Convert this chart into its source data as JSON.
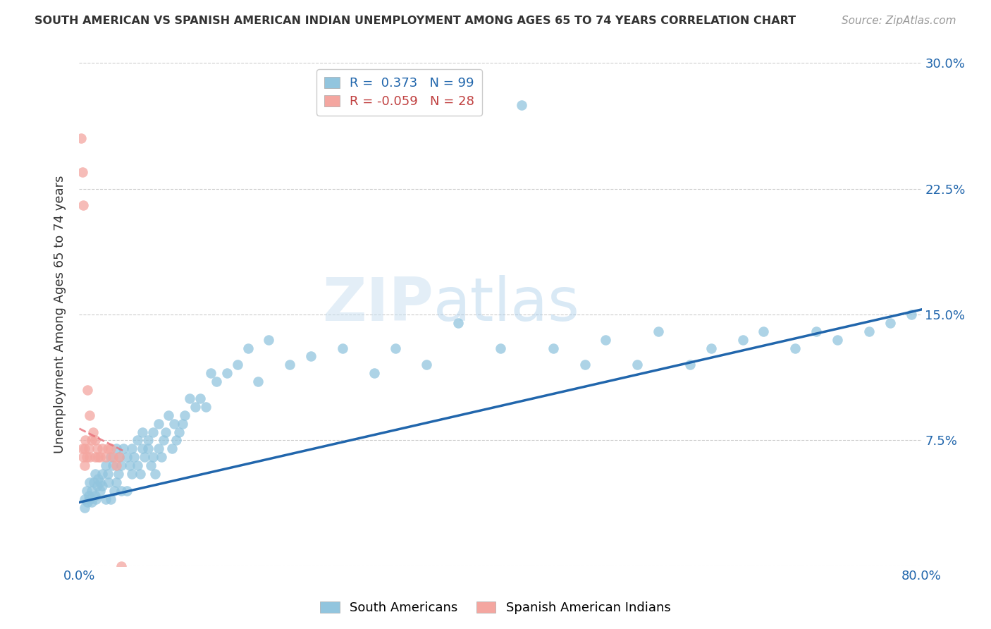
{
  "title": "SOUTH AMERICAN VS SPANISH AMERICAN INDIAN UNEMPLOYMENT AMONG AGES 65 TO 74 YEARS CORRELATION CHART",
  "source": "Source: ZipAtlas.com",
  "ylabel": "Unemployment Among Ages 65 to 74 years",
  "xlim": [
    0.0,
    0.8
  ],
  "ylim": [
    0.0,
    0.3
  ],
  "r_blue": 0.373,
  "n_blue": 99,
  "r_pink": -0.059,
  "n_pink": 28,
  "blue_color": "#92c5de",
  "pink_color": "#f4a6a0",
  "blue_line_color": "#2166ac",
  "pink_line_color": "#e8707a",
  "blue_line_x0": 0.0,
  "blue_line_y0": 0.038,
  "blue_line_x1": 0.8,
  "blue_line_y1": 0.153,
  "pink_line_x0": 0.0,
  "pink_line_y0": 0.082,
  "pink_line_x1": 0.044,
  "pink_line_y1": 0.068,
  "watermark_zip": "ZIP",
  "watermark_atlas": "atlas",
  "background_color": "#ffffff",
  "grid_color": "#cccccc",
  "blue_x": [
    0.005,
    0.005,
    0.007,
    0.008,
    0.009,
    0.01,
    0.01,
    0.012,
    0.012,
    0.014,
    0.015,
    0.015,
    0.016,
    0.017,
    0.018,
    0.02,
    0.02,
    0.022,
    0.022,
    0.025,
    0.025,
    0.027,
    0.028,
    0.03,
    0.03,
    0.032,
    0.033,
    0.035,
    0.035,
    0.037,
    0.038,
    0.04,
    0.04,
    0.042,
    0.045,
    0.045,
    0.048,
    0.05,
    0.05,
    0.052,
    0.055,
    0.055,
    0.058,
    0.06,
    0.06,
    0.062,
    0.065,
    0.065,
    0.068,
    0.07,
    0.07,
    0.072,
    0.075,
    0.075,
    0.078,
    0.08,
    0.082,
    0.085,
    0.088,
    0.09,
    0.092,
    0.095,
    0.098,
    0.1,
    0.105,
    0.11,
    0.115,
    0.12,
    0.125,
    0.13,
    0.14,
    0.15,
    0.16,
    0.17,
    0.18,
    0.2,
    0.22,
    0.25,
    0.28,
    0.3,
    0.33,
    0.36,
    0.4,
    0.42,
    0.45,
    0.48,
    0.5,
    0.53,
    0.55,
    0.58,
    0.6,
    0.63,
    0.65,
    0.68,
    0.7,
    0.72,
    0.75,
    0.77,
    0.79
  ],
  "blue_y": [
    0.04,
    0.035,
    0.045,
    0.038,
    0.042,
    0.05,
    0.04,
    0.045,
    0.038,
    0.05,
    0.042,
    0.055,
    0.04,
    0.048,
    0.052,
    0.05,
    0.045,
    0.055,
    0.048,
    0.06,
    0.04,
    0.055,
    0.05,
    0.065,
    0.04,
    0.06,
    0.045,
    0.07,
    0.05,
    0.055,
    0.065,
    0.045,
    0.06,
    0.07,
    0.065,
    0.045,
    0.06,
    0.055,
    0.07,
    0.065,
    0.06,
    0.075,
    0.055,
    0.07,
    0.08,
    0.065,
    0.07,
    0.075,
    0.06,
    0.065,
    0.08,
    0.055,
    0.07,
    0.085,
    0.065,
    0.075,
    0.08,
    0.09,
    0.07,
    0.085,
    0.075,
    0.08,
    0.085,
    0.09,
    0.1,
    0.095,
    0.1,
    0.095,
    0.115,
    0.11,
    0.115,
    0.12,
    0.13,
    0.11,
    0.135,
    0.12,
    0.125,
    0.13,
    0.115,
    0.13,
    0.12,
    0.145,
    0.13,
    0.275,
    0.13,
    0.12,
    0.135,
    0.12,
    0.14,
    0.12,
    0.13,
    0.135,
    0.14,
    0.13,
    0.14,
    0.135,
    0.14,
    0.145,
    0.15
  ],
  "pink_x": [
    0.002,
    0.003,
    0.003,
    0.004,
    0.004,
    0.005,
    0.005,
    0.006,
    0.007,
    0.008,
    0.009,
    0.01,
    0.01,
    0.012,
    0.013,
    0.015,
    0.015,
    0.017,
    0.018,
    0.02,
    0.022,
    0.025,
    0.027,
    0.03,
    0.032,
    0.035,
    0.038,
    0.04
  ],
  "pink_y": [
    0.255,
    0.235,
    0.07,
    0.215,
    0.065,
    0.07,
    0.06,
    0.075,
    0.065,
    0.105,
    0.07,
    0.09,
    0.065,
    0.075,
    0.08,
    0.075,
    0.065,
    0.07,
    0.065,
    0.065,
    0.07,
    0.065,
    0.07,
    0.07,
    0.065,
    0.06,
    0.065,
    0.0
  ]
}
